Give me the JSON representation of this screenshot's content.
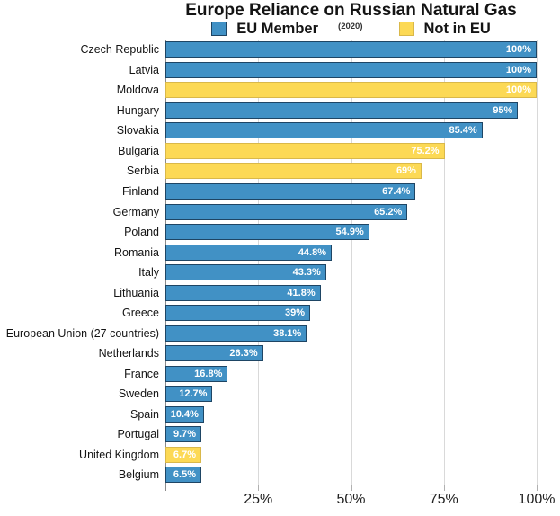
{
  "chart_data": {
    "type": "bar",
    "orientation": "horizontal",
    "title": "Europe Reliance on Russian Natural Gas",
    "subtitle": "(2020)",
    "xlabel": "",
    "ylabel": "",
    "xlim": [
      0,
      100
    ],
    "grid": true,
    "legend_position": "top",
    "groups": {
      "eu": {
        "label": "EU Member",
        "fill": "#4191C5",
        "border": "#1E4564"
      },
      "non_eu": {
        "label": "Not in EU",
        "fill": "#FCD955",
        "border": "#D9B84A"
      }
    },
    "x_ticks": [
      {
        "label": "25%",
        "value": 25
      },
      {
        "label": "50%",
        "value": 50
      },
      {
        "label": "75%",
        "value": 75
      },
      {
        "label": "100%",
        "value": 100
      }
    ],
    "bars": [
      {
        "country": "Czech Republic",
        "value": 100,
        "label": "100%",
        "group": "eu"
      },
      {
        "country": "Latvia",
        "value": 100,
        "label": "100%",
        "group": "eu"
      },
      {
        "country": "Moldova",
        "value": 100,
        "label": "100%",
        "group": "non_eu"
      },
      {
        "country": "Hungary",
        "value": 95,
        "label": "95%",
        "group": "eu"
      },
      {
        "country": "Slovakia",
        "value": 85.4,
        "label": "85.4%",
        "group": "eu"
      },
      {
        "country": "Bulgaria",
        "value": 75.2,
        "label": "75.2%",
        "group": "non_eu"
      },
      {
        "country": "Serbia",
        "value": 69,
        "label": "69%",
        "group": "non_eu"
      },
      {
        "country": "Finland",
        "value": 67.4,
        "label": "67.4%",
        "group": "eu"
      },
      {
        "country": "Germany",
        "value": 65.2,
        "label": "65.2%",
        "group": "eu"
      },
      {
        "country": "Poland",
        "value": 54.9,
        "label": "54.9%",
        "group": "eu"
      },
      {
        "country": "Romania",
        "value": 44.8,
        "label": "44.8%",
        "group": "eu"
      },
      {
        "country": "Italy",
        "value": 43.3,
        "label": "43.3%",
        "group": "eu"
      },
      {
        "country": "Lithuania",
        "value": 41.8,
        "label": "41.8%",
        "group": "eu"
      },
      {
        "country": "Greece",
        "value": 39,
        "label": "39%",
        "group": "eu"
      },
      {
        "country": "European Union (27 countries)",
        "value": 38.1,
        "label": "38.1%",
        "group": "eu"
      },
      {
        "country": "Netherlands",
        "value": 26.3,
        "label": "26.3%",
        "group": "eu"
      },
      {
        "country": "France",
        "value": 16.8,
        "label": "16.8%",
        "group": "eu"
      },
      {
        "country": "Sweden",
        "value": 12.7,
        "label": "12.7%",
        "group": "eu"
      },
      {
        "country": "Spain",
        "value": 10.4,
        "label": "10.4%",
        "group": "eu"
      },
      {
        "country": "Portugal",
        "value": 9.7,
        "label": "9.7%",
        "group": "eu"
      },
      {
        "country": "United Kingdom",
        "value": 6.7,
        "label": "6.7%",
        "group": "non_eu"
      },
      {
        "country": "Belgium",
        "value": 6.5,
        "label": "6.5%",
        "group": "eu"
      }
    ]
  }
}
